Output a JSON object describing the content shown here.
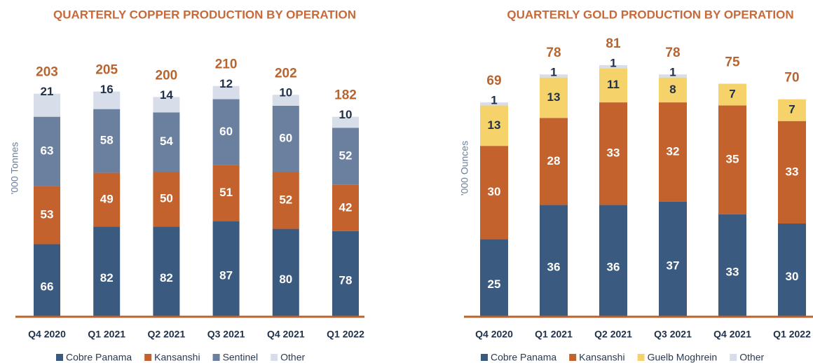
{
  "chart_data": [
    {
      "type": "stacked_bar",
      "title": "QUARTERLY COPPER PRODUCTION BY OPERATION",
      "y_label": "'000 Tonnes",
      "categories": [
        "Q4 2020",
        "Q1 2021",
        "Q2 2021",
        "Q3 2021",
        "Q4 2021",
        "Q1 2022"
      ],
      "series": [
        {
          "name": "Cobre Panama",
          "color": "#3b5a80",
          "values": [
            66,
            82,
            82,
            87,
            80,
            78
          ]
        },
        {
          "name": "Kansanshi",
          "color": "#c4622d",
          "values": [
            53,
            49,
            50,
            51,
            52,
            42
          ]
        },
        {
          "name": "Sentinel",
          "color": "#6b7f9f",
          "values": [
            63,
            58,
            54,
            60,
            60,
            52
          ]
        },
        {
          "name": "Other",
          "color": "#d8dee9",
          "values": [
            21,
            16,
            14,
            12,
            10,
            10
          ]
        }
      ],
      "totals": [
        203,
        205,
        200,
        210,
        202,
        182
      ],
      "ylim": [
        0,
        250
      ]
    },
    {
      "type": "stacked_bar",
      "title": "QUARTERLY GOLD PRODUCTION BY OPERATION",
      "y_label": "'000 Ounces",
      "categories": [
        "Q4 2020",
        "Q1 2021",
        "Q2 2021",
        "Q3 2021",
        "Q4 2021",
        "Q1 2022"
      ],
      "series": [
        {
          "name": "Cobre Panama",
          "color": "#3b5a80",
          "values": [
            25,
            36,
            36,
            37,
            33,
            30
          ]
        },
        {
          "name": "Kansanshi",
          "color": "#c4622d",
          "values": [
            30,
            28,
            33,
            32,
            35,
            33
          ]
        },
        {
          "name": "Guelb Moghrein",
          "color": "#f6d36a",
          "values": [
            13,
            13,
            11,
            8,
            7,
            7
          ]
        },
        {
          "name": "Other",
          "color": "#d8dee9",
          "values": [
            1,
            1,
            1,
            1,
            null,
            null
          ]
        }
      ],
      "totals": [
        69,
        78,
        81,
        78,
        75,
        70
      ],
      "ylim": [
        0,
        90
      ]
    }
  ]
}
